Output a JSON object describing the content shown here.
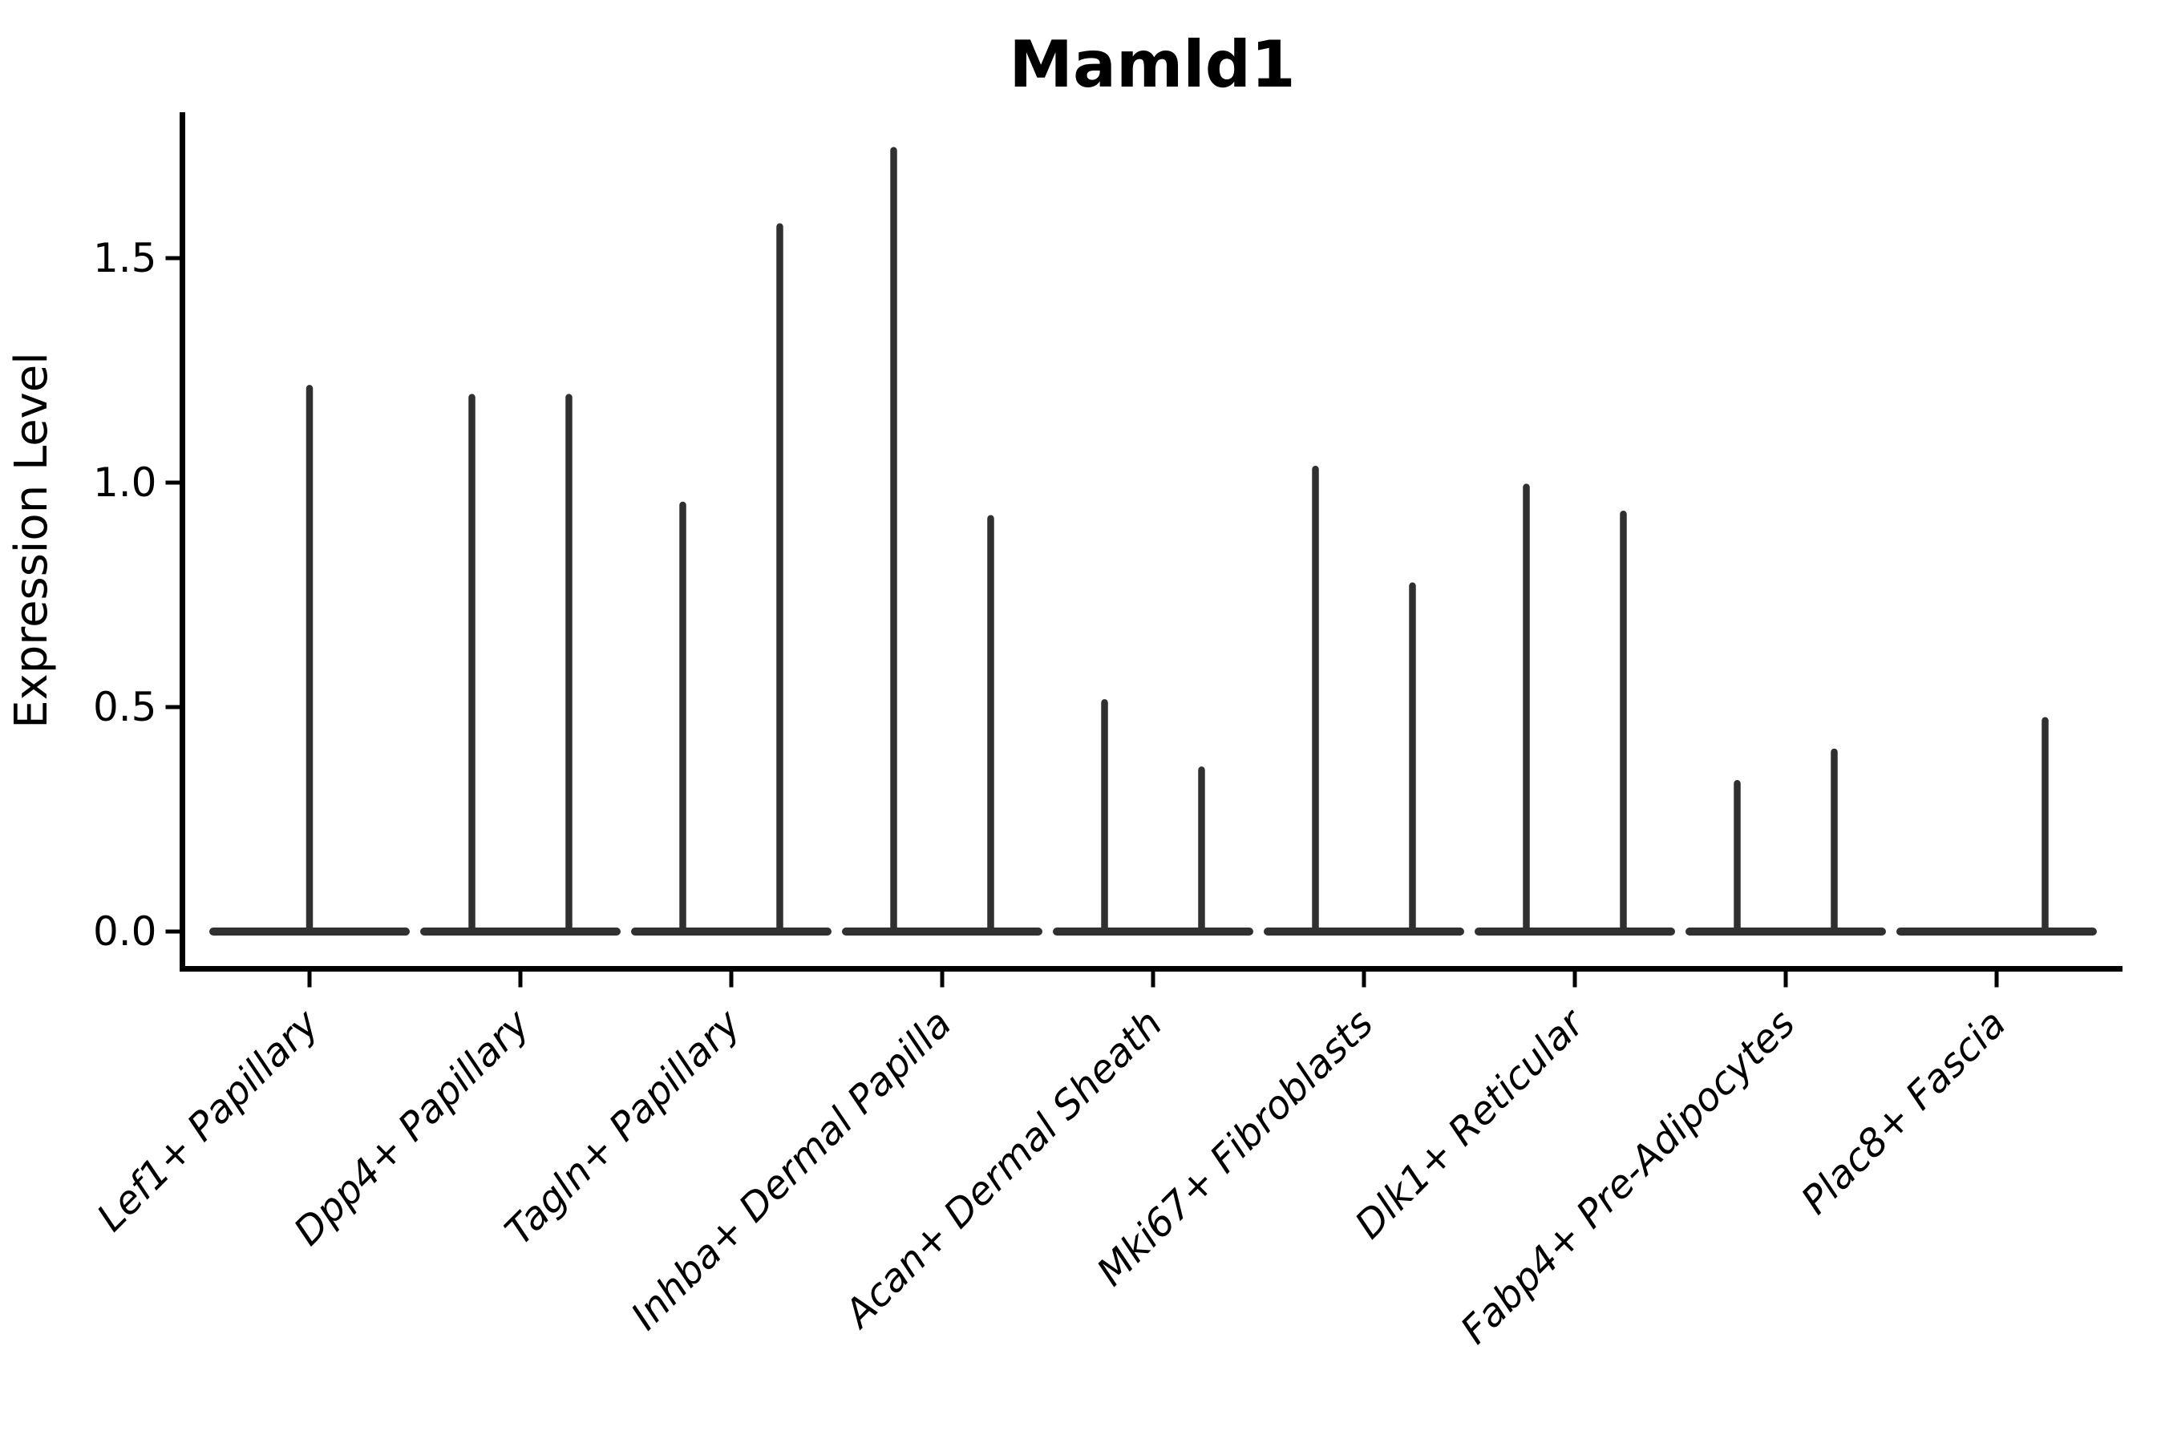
{
  "chart_data": {
    "type": "violin",
    "title": "Mamld1",
    "xlabel": "",
    "ylabel": "Expression Level",
    "grid": false,
    "legend": "none",
    "ylim": [
      -0.08,
      1.83
    ],
    "xlim_units": [
      -0.6,
      8.6
    ],
    "yticks": [
      {
        "value": 0.0,
        "label": "0.0"
      },
      {
        "value": 0.5,
        "label": "0.5"
      },
      {
        "value": 1.0,
        "label": "1.0"
      },
      {
        "value": 1.5,
        "label": "1.5"
      }
    ],
    "categories": [
      "Lef1+ Papillary",
      "Dpp4+ Papillary",
      "Tagln+ Papillary",
      "Inhba+ Dermal Papilla",
      "Acan+ Dermal Sheath",
      "Mki67+ Fibroblasts",
      "Dlk1+ Reticular",
      "Fabp4+ Pre-Adipocytes",
      "Plac8+ Fascia"
    ],
    "series": [
      {
        "category": "Lef1+ Papillary",
        "base_value": 0,
        "spikes": [
          {
            "offset": 0.0,
            "peak": 1.21
          }
        ]
      },
      {
        "category": "Dpp4+ Papillary",
        "base_value": 0,
        "spikes": [
          {
            "offset": -0.23,
            "peak": 1.19
          },
          {
            "offset": 0.23,
            "peak": 1.19
          }
        ]
      },
      {
        "category": "Tagln+ Papillary",
        "base_value": 0,
        "spikes": [
          {
            "offset": -0.23,
            "peak": 0.95
          },
          {
            "offset": 0.23,
            "peak": 1.57
          }
        ]
      },
      {
        "category": "Inhba+ Dermal Papilla",
        "base_value": 0,
        "spikes": [
          {
            "offset": -0.23,
            "peak": 1.74
          },
          {
            "offset": 0.23,
            "peak": 0.92
          }
        ]
      },
      {
        "category": "Acan+ Dermal Sheath",
        "base_value": 0,
        "spikes": [
          {
            "offset": -0.23,
            "peak": 0.51
          },
          {
            "offset": 0.23,
            "peak": 0.36
          }
        ]
      },
      {
        "category": "Mki67+ Fibroblasts",
        "base_value": 0,
        "spikes": [
          {
            "offset": -0.23,
            "peak": 1.03
          },
          {
            "offset": 0.23,
            "peak": 0.77
          }
        ]
      },
      {
        "category": "Dlk1+ Reticular",
        "base_value": 0,
        "spikes": [
          {
            "offset": -0.23,
            "peak": 0.99
          },
          {
            "offset": 0.23,
            "peak": 0.93
          }
        ]
      },
      {
        "category": "Fabp4+ Pre-Adipocytes",
        "base_value": 0,
        "spikes": [
          {
            "offset": -0.23,
            "peak": 0.33
          },
          {
            "offset": 0.23,
            "peak": 0.4
          }
        ]
      },
      {
        "category": "Plac8+ Fascia",
        "base_value": 0,
        "spikes": [
          {
            "offset": 0.23,
            "peak": 0.47
          }
        ]
      }
    ],
    "colors": {
      "violin_stroke": "#303030",
      "axis": "#000000",
      "text": "#000000",
      "background": "#ffffff"
    }
  }
}
